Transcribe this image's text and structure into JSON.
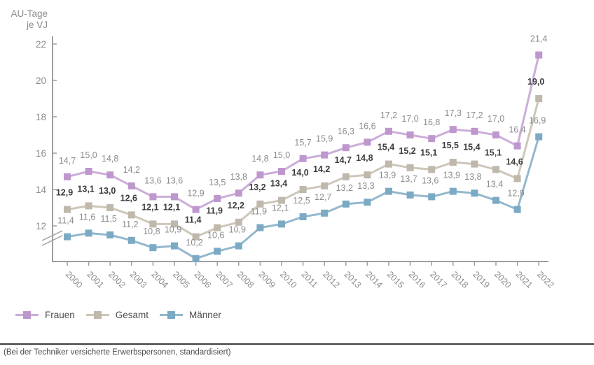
{
  "title": {
    "line1": "AU-Tage",
    "line2": "je VJ"
  },
  "chart_data": {
    "type": "line",
    "x": [
      2000,
      2001,
      2002,
      2003,
      2004,
      2005,
      2006,
      2007,
      2008,
      2009,
      2010,
      2011,
      2012,
      2013,
      2014,
      2015,
      2016,
      2017,
      2018,
      2019,
      2020,
      2021,
      2022
    ],
    "series": [
      {
        "name": "Frauen",
        "color": "#be97cd",
        "line_color": "#cbadd9",
        "label_bold": false,
        "label_color": "#8c8c8c",
        "values": [
          14.7,
          15.0,
          14.8,
          14.2,
          13.6,
          13.6,
          12.9,
          13.5,
          13.8,
          14.8,
          15.0,
          15.7,
          15.9,
          16.3,
          16.6,
          17.2,
          17.0,
          16.8,
          17.3,
          17.2,
          17.0,
          16.4,
          21.4
        ]
      },
      {
        "name": "Gesamt",
        "color": "#bfb8ab",
        "line_color": "#cdc7ba",
        "label_bold": true,
        "label_color": "#3c3c3c",
        "values": [
          12.9,
          13.1,
          13.0,
          12.6,
          12.1,
          12.1,
          11.4,
          11.9,
          12.2,
          13.2,
          13.4,
          14.0,
          14.2,
          14.7,
          14.8,
          15.4,
          15.2,
          15.1,
          15.5,
          15.4,
          15.1,
          14.6,
          19.0
        ]
      },
      {
        "name": "Männer",
        "color": "#7baac4",
        "line_color": "#93b8cd",
        "label_bold": false,
        "label_color": "#8c8c8c",
        "values": [
          11.4,
          11.6,
          11.5,
          11.2,
          10.8,
          10.9,
          10.2,
          10.6,
          10.9,
          11.9,
          12.1,
          12.5,
          12.7,
          13.2,
          13.3,
          13.9,
          13.7,
          13.6,
          13.9,
          13.8,
          13.4,
          12.9,
          16.9
        ]
      }
    ],
    "title": "",
    "xlabel": "",
    "ylabel": "AU-Tage je VJ",
    "yticks": [
      12,
      14,
      16,
      18,
      20,
      22
    ],
    "ylim": [
      9.8,
      22.6
    ],
    "axis_break": true,
    "grid": false,
    "legend_position": "bottom-left",
    "decimal_separator": ","
  },
  "colors": {
    "axis": "#9e9e9e",
    "tick_label": "#8c8c8c",
    "legend_text": "#4b4b4b",
    "separator": "#3d3d3d",
    "footer_text": "#4b4b4b",
    "background": "#ffffff"
  },
  "footer": {
    "note": "(Bei der Techniker versicherte Erwerbspersonen, standardisiert)"
  }
}
